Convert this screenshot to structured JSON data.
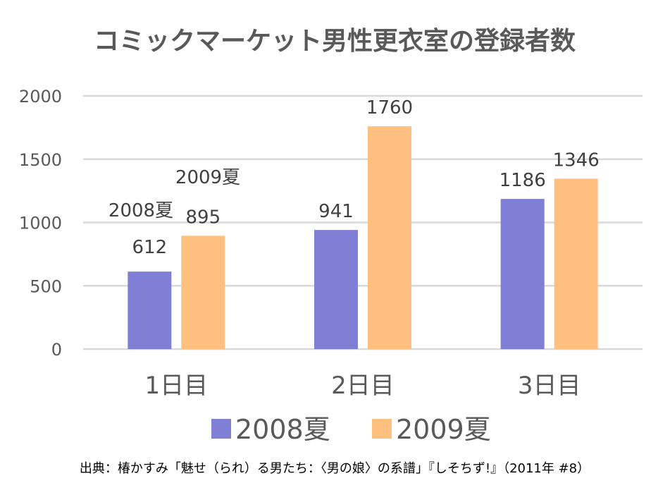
{
  "chart_data": {
    "type": "bar",
    "title": "コミックマーケット男性更衣室の登録者数",
    "categories": [
      "1日目",
      "2日目",
      "3日目"
    ],
    "series": [
      {
        "name": "2008夏",
        "values": [
          612,
          941,
          1186
        ],
        "color": "#7F7FD5"
      },
      {
        "name": "2009夏",
        "values": [
          895,
          1760,
          1346
        ],
        "color": "#FFBF7F"
      }
    ],
    "ylim": [
      0,
      2000
    ],
    "yticks": [
      0,
      500,
      1000,
      1500,
      2000
    ],
    "grid": true,
    "legend": "bottom",
    "xlabel": "",
    "ylabel": "",
    "annotations": [
      "2008夏",
      "2009夏"
    ],
    "source": "出典：椿かすみ「魅せ（られ）る男たち：〈男の娘〉の系譜」『しそちず!』（2011年 #8）"
  }
}
